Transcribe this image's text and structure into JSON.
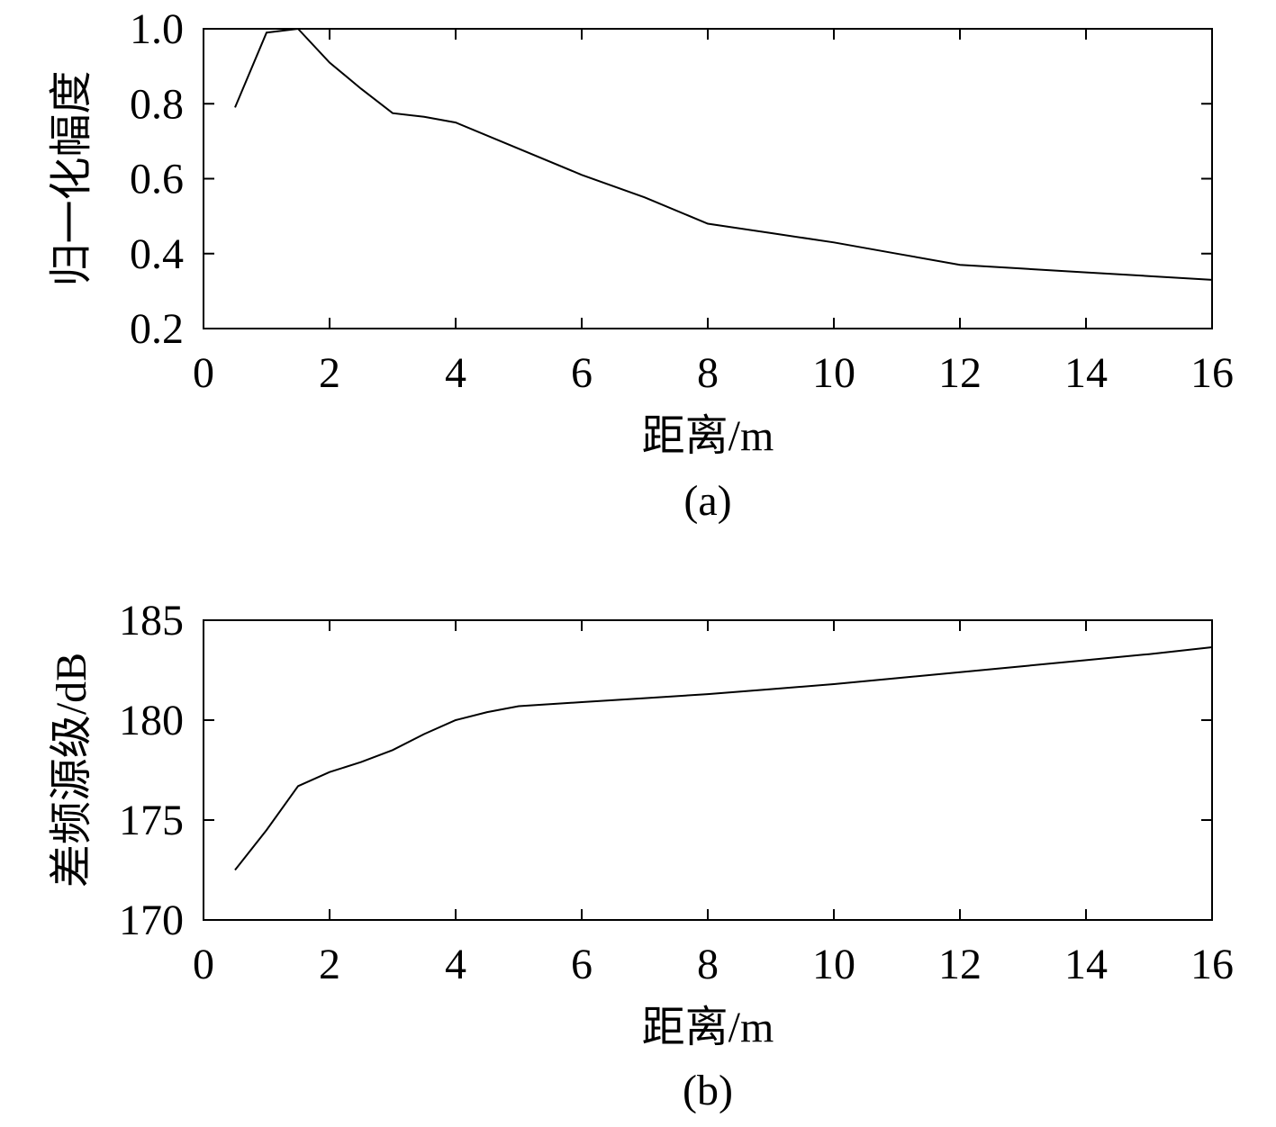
{
  "chart_data": [
    {
      "type": "line",
      "panel_label": "(a)",
      "xlabel": "距离/m",
      "ylabel": "归一化幅度",
      "xlim": [
        0,
        16
      ],
      "ylim": [
        0.2,
        1.0
      ],
      "xticks": [
        0,
        2,
        4,
        6,
        8,
        10,
        12,
        14,
        16
      ],
      "yticks": [
        0.2,
        0.4,
        0.6,
        0.8,
        1.0
      ],
      "xtick_labels": [
        "0",
        "2",
        "4",
        "6",
        "8",
        "10",
        "12",
        "14",
        "16"
      ],
      "ytick_labels": [
        "0.2",
        "0.4",
        "0.6",
        "0.8",
        "1.0"
      ],
      "grid": false,
      "series": [
        {
          "color": "#000000",
          "x": [
            0.5,
            1.0,
            1.5,
            2.0,
            2.5,
            3.0,
            3.5,
            4.0,
            5.0,
            6.0,
            7.0,
            8.0,
            9.0,
            10.0,
            11.0,
            12.0,
            13.0,
            14.0,
            15.0,
            16.0
          ],
          "y": [
            0.79,
            0.99,
            1.0,
            0.91,
            0.84,
            0.775,
            0.765,
            0.75,
            0.68,
            0.61,
            0.55,
            0.48,
            0.455,
            0.43,
            0.4,
            0.37,
            0.36,
            0.35,
            0.34,
            0.33
          ]
        }
      ]
    },
    {
      "type": "line",
      "panel_label": "(b)",
      "xlabel": "距离/m",
      "ylabel": "差频源级/dB",
      "xlim": [
        0,
        16
      ],
      "ylim": [
        170,
        185
      ],
      "xticks": [
        0,
        2,
        4,
        6,
        8,
        10,
        12,
        14,
        16
      ],
      "yticks": [
        170,
        175,
        180,
        185
      ],
      "xtick_labels": [
        "0",
        "2",
        "4",
        "6",
        "8",
        "10",
        "12",
        "14",
        "16"
      ],
      "ytick_labels": [
        "170",
        "175",
        "180",
        "185"
      ],
      "grid": false,
      "series": [
        {
          "color": "#000000",
          "x": [
            0.5,
            1.0,
            1.5,
            2.0,
            2.5,
            3.0,
            3.5,
            4.0,
            4.5,
            5.0,
            6.0,
            7.0,
            8.0,
            9.0,
            10.0,
            11.0,
            12.0,
            13.0,
            14.0,
            15.0,
            16.0
          ],
          "y": [
            172.5,
            174.5,
            176.7,
            177.4,
            177.9,
            178.5,
            179.3,
            180.0,
            180.4,
            180.7,
            180.9,
            181.1,
            181.3,
            181.55,
            181.8,
            182.1,
            182.4,
            182.7,
            183.0,
            183.3,
            183.65
          ]
        }
      ]
    }
  ]
}
